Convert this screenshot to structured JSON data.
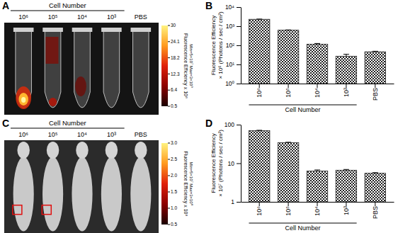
{
  "chart_data": [
    {
      "type": "image",
      "panel": "A",
      "title": "Cell Number",
      "categories": [
        "10⁶",
        "10⁵",
        "10⁴",
        "10³",
        "PBS"
      ],
      "colorbar_title": "Fluorescence Efficiency x 10⁸",
      "colorbar_note": "Min=5×10⁷ Max=3×10⁹",
      "colorbar_range": [
        0.5,
        30
      ],
      "colorbar_ticks": [
        30,
        24.1,
        18.2,
        12.3,
        6.4,
        0.5
      ]
    },
    {
      "type": "bar",
      "panel": "B",
      "categories": [
        "10⁶",
        "10⁵",
        "10⁴",
        "10³",
        "PBS"
      ],
      "values": [
        2300,
        620,
        115,
        27,
        46
      ],
      "errors": [
        60,
        20,
        10,
        7,
        3
      ],
      "xlabel": "Cell Number",
      "ylabel": [
        "Fluorescence Efficiency",
        "× 10⁶ (Photons / sec / cm²)"
      ],
      "log": "y",
      "ylim": [
        1,
        10000
      ],
      "yticks": [
        {
          "value": 1,
          "label": "10⁰"
        },
        {
          "value": 10,
          "label": "10¹"
        },
        {
          "value": 100,
          "label": "10²"
        },
        {
          "value": 1000,
          "label": "10³"
        },
        {
          "value": 10000,
          "label": "10⁴"
        }
      ],
      "color": "#222222"
    },
    {
      "type": "image",
      "panel": "C",
      "title": "Cell Number",
      "categories": [
        "10⁶",
        "10⁵",
        "10⁴",
        "10³",
        "PBS"
      ],
      "colorbar_title": "Fluorescence Efficiency x 10⁸",
      "colorbar_note": "Min=5×10⁷ Max=3×10⁸",
      "colorbar_range": [
        0.5,
        3
      ],
      "colorbar_ticks": [
        {
          "value": 3,
          "label": "3.0"
        },
        2.5,
        {
          "value": 2,
          "label": "2.0"
        },
        1.5,
        {
          "value": 1,
          "label": "1.0"
        },
        0.5
      ]
    },
    {
      "type": "bar",
      "panel": "D",
      "categories": [
        "10⁶",
        "10⁵",
        "10⁴",
        "10³",
        "PBS"
      ],
      "values": [
        70,
        34,
        6.3,
        6.6,
        5.5
      ],
      "errors": [
        1.5,
        1,
        0.4,
        0.3,
        0.2
      ],
      "xlabel": "Cell Number",
      "ylabel": [
        "Fluorescence Efficiency",
        "× 10⁷ (Photons / sec / cm²)"
      ],
      "log": "y",
      "ylim": [
        1,
        100
      ],
      "yticks": [
        1,
        10,
        100
      ],
      "color": "#222222"
    }
  ]
}
